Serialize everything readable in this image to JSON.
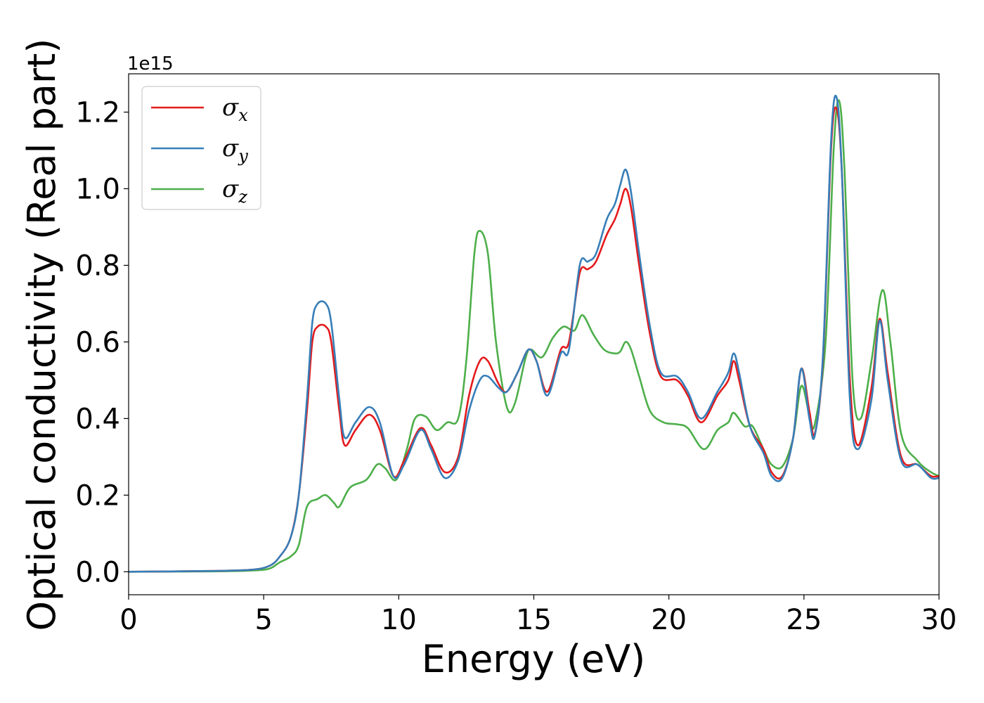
{
  "chart_data": {
    "type": "line",
    "title": "",
    "xlabel": "Energy (eV)",
    "ylabel": "Optical conductivity (Real part)",
    "y_offset_label": "1e15",
    "xlim": [
      0,
      30
    ],
    "ylim": [
      -0.06,
      1.3
    ],
    "x_ticks": [
      0,
      5,
      10,
      15,
      20,
      25,
      30
    ],
    "x_tick_labels": [
      "0",
      "5",
      "10",
      "15",
      "20",
      "25",
      "30"
    ],
    "y_ticks": [
      0.0,
      0.2,
      0.4,
      0.6,
      0.8,
      1.0,
      1.2
    ],
    "y_tick_labels": [
      "0.0",
      "0.2",
      "0.4",
      "0.6",
      "0.8",
      "1.0",
      "1.2"
    ],
    "grid": false,
    "legend_position": "top-left",
    "series": [
      {
        "name": "σx",
        "symbol": "σ",
        "subscript": "x",
        "color": "#e41a1c",
        "points": [
          [
            0,
            0
          ],
          [
            3,
            0.002
          ],
          [
            4.5,
            0.005
          ],
          [
            5.2,
            0.015
          ],
          [
            5.6,
            0.04
          ],
          [
            6.0,
            0.09
          ],
          [
            6.3,
            0.2
          ],
          [
            6.6,
            0.42
          ],
          [
            6.8,
            0.6
          ],
          [
            7.0,
            0.64
          ],
          [
            7.3,
            0.64
          ],
          [
            7.5,
            0.6
          ],
          [
            7.8,
            0.42
          ],
          [
            8.0,
            0.33
          ],
          [
            8.4,
            0.37
          ],
          [
            8.9,
            0.41
          ],
          [
            9.3,
            0.37
          ],
          [
            9.8,
            0.25
          ],
          [
            10.2,
            0.29
          ],
          [
            10.8,
            0.375
          ],
          [
            11.2,
            0.33
          ],
          [
            11.7,
            0.26
          ],
          [
            12.2,
            0.3
          ],
          [
            12.6,
            0.46
          ],
          [
            13.0,
            0.55
          ],
          [
            13.3,
            0.55
          ],
          [
            13.7,
            0.49
          ],
          [
            14.0,
            0.47
          ],
          [
            14.4,
            0.52
          ],
          [
            14.8,
            0.58
          ],
          [
            15.1,
            0.55
          ],
          [
            15.5,
            0.47
          ],
          [
            16.0,
            0.58
          ],
          [
            16.3,
            0.6
          ],
          [
            16.7,
            0.78
          ],
          [
            17.0,
            0.79
          ],
          [
            17.3,
            0.81
          ],
          [
            17.7,
            0.88
          ],
          [
            18.0,
            0.92
          ],
          [
            18.2,
            0.96
          ],
          [
            18.4,
            1.0
          ],
          [
            18.6,
            0.95
          ],
          [
            18.9,
            0.8
          ],
          [
            19.3,
            0.62
          ],
          [
            19.7,
            0.51
          ],
          [
            20.3,
            0.5
          ],
          [
            20.7,
            0.46
          ],
          [
            21.2,
            0.39
          ],
          [
            21.8,
            0.46
          ],
          [
            22.2,
            0.5
          ],
          [
            22.4,
            0.55
          ],
          [
            22.6,
            0.5
          ],
          [
            23.0,
            0.38
          ],
          [
            23.5,
            0.32
          ],
          [
            23.8,
            0.26
          ],
          [
            24.2,
            0.25
          ],
          [
            24.6,
            0.35
          ],
          [
            24.9,
            0.53
          ],
          [
            25.2,
            0.42
          ],
          [
            25.4,
            0.36
          ],
          [
            25.7,
            0.55
          ],
          [
            26.0,
            1.1
          ],
          [
            26.2,
            1.21
          ],
          [
            26.4,
            1.05
          ],
          [
            26.7,
            0.5
          ],
          [
            27.0,
            0.33
          ],
          [
            27.5,
            0.48
          ],
          [
            27.8,
            0.66
          ],
          [
            28.1,
            0.52
          ],
          [
            28.6,
            0.3
          ],
          [
            29.2,
            0.28
          ],
          [
            29.7,
            0.25
          ],
          [
            30,
            0.25
          ]
        ]
      },
      {
        "name": "σy",
        "symbol": "σ",
        "subscript": "y",
        "color": "#377eb8",
        "points": [
          [
            0,
            0
          ],
          [
            3,
            0.002
          ],
          [
            4.5,
            0.005
          ],
          [
            5.2,
            0.015
          ],
          [
            5.6,
            0.04
          ],
          [
            6.0,
            0.09
          ],
          [
            6.3,
            0.2
          ],
          [
            6.6,
            0.45
          ],
          [
            6.8,
            0.65
          ],
          [
            7.0,
            0.7
          ],
          [
            7.3,
            0.7
          ],
          [
            7.5,
            0.65
          ],
          [
            7.8,
            0.45
          ],
          [
            8.0,
            0.35
          ],
          [
            8.4,
            0.39
          ],
          [
            8.9,
            0.43
          ],
          [
            9.3,
            0.39
          ],
          [
            9.8,
            0.25
          ],
          [
            10.2,
            0.28
          ],
          [
            10.8,
            0.37
          ],
          [
            11.2,
            0.32
          ],
          [
            11.7,
            0.245
          ],
          [
            12.2,
            0.29
          ],
          [
            12.6,
            0.42
          ],
          [
            13.0,
            0.5
          ],
          [
            13.3,
            0.51
          ],
          [
            13.7,
            0.48
          ],
          [
            14.0,
            0.47
          ],
          [
            14.4,
            0.52
          ],
          [
            14.8,
            0.58
          ],
          [
            15.1,
            0.55
          ],
          [
            15.5,
            0.46
          ],
          [
            16.0,
            0.57
          ],
          [
            16.3,
            0.58
          ],
          [
            16.7,
            0.8
          ],
          [
            17.0,
            0.81
          ],
          [
            17.3,
            0.83
          ],
          [
            17.7,
            0.92
          ],
          [
            18.0,
            0.96
          ],
          [
            18.2,
            1.01
          ],
          [
            18.4,
            1.05
          ],
          [
            18.6,
            0.99
          ],
          [
            18.9,
            0.83
          ],
          [
            19.3,
            0.64
          ],
          [
            19.7,
            0.52
          ],
          [
            20.3,
            0.51
          ],
          [
            20.7,
            0.47
          ],
          [
            21.2,
            0.4
          ],
          [
            21.8,
            0.47
          ],
          [
            22.2,
            0.52
          ],
          [
            22.4,
            0.57
          ],
          [
            22.6,
            0.52
          ],
          [
            23.0,
            0.38
          ],
          [
            23.5,
            0.31
          ],
          [
            23.8,
            0.25
          ],
          [
            24.2,
            0.245
          ],
          [
            24.6,
            0.35
          ],
          [
            24.9,
            0.53
          ],
          [
            25.2,
            0.4
          ],
          [
            25.4,
            0.355
          ],
          [
            25.7,
            0.56
          ],
          [
            26.0,
            1.12
          ],
          [
            26.2,
            1.24
          ],
          [
            26.4,
            1.05
          ],
          [
            26.7,
            0.45
          ],
          [
            27.0,
            0.32
          ],
          [
            27.5,
            0.45
          ],
          [
            27.8,
            0.655
          ],
          [
            28.1,
            0.5
          ],
          [
            28.6,
            0.29
          ],
          [
            29.2,
            0.28
          ],
          [
            29.7,
            0.245
          ],
          [
            30,
            0.245
          ]
        ]
      },
      {
        "name": "σz",
        "symbol": "σ",
        "subscript": "z",
        "color": "#4daf4a",
        "points": [
          [
            0,
            0
          ],
          [
            3,
            0.001
          ],
          [
            4.5,
            0.003
          ],
          [
            5.2,
            0.008
          ],
          [
            5.6,
            0.025
          ],
          [
            6.0,
            0.04
          ],
          [
            6.3,
            0.07
          ],
          [
            6.6,
            0.17
          ],
          [
            7.0,
            0.19
          ],
          [
            7.3,
            0.2
          ],
          [
            7.6,
            0.18
          ],
          [
            7.8,
            0.17
          ],
          [
            8.2,
            0.22
          ],
          [
            8.8,
            0.24
          ],
          [
            9.2,
            0.28
          ],
          [
            9.5,
            0.27
          ],
          [
            9.9,
            0.24
          ],
          [
            10.3,
            0.32
          ],
          [
            10.6,
            0.4
          ],
          [
            11.0,
            0.405
          ],
          [
            11.4,
            0.37
          ],
          [
            11.8,
            0.39
          ],
          [
            12.2,
            0.4
          ],
          [
            12.5,
            0.55
          ],
          [
            12.8,
            0.83
          ],
          [
            13.0,
            0.89
          ],
          [
            13.3,
            0.83
          ],
          [
            13.6,
            0.6
          ],
          [
            14.0,
            0.43
          ],
          [
            14.3,
            0.44
          ],
          [
            14.7,
            0.56
          ],
          [
            14.9,
            0.58
          ],
          [
            15.3,
            0.56
          ],
          [
            15.7,
            0.61
          ],
          [
            16.1,
            0.64
          ],
          [
            16.5,
            0.63
          ],
          [
            16.8,
            0.67
          ],
          [
            17.2,
            0.62
          ],
          [
            17.6,
            0.58
          ],
          [
            18.0,
            0.57
          ],
          [
            18.2,
            0.575
          ],
          [
            18.4,
            0.6
          ],
          [
            18.6,
            0.58
          ],
          [
            18.9,
            0.51
          ],
          [
            19.3,
            0.42
          ],
          [
            19.8,
            0.39
          ],
          [
            20.3,
            0.385
          ],
          [
            20.7,
            0.375
          ],
          [
            21.3,
            0.32
          ],
          [
            21.8,
            0.37
          ],
          [
            22.2,
            0.39
          ],
          [
            22.4,
            0.415
          ],
          [
            22.8,
            0.38
          ],
          [
            23.1,
            0.38
          ],
          [
            23.5,
            0.32
          ],
          [
            23.8,
            0.28
          ],
          [
            24.2,
            0.275
          ],
          [
            24.6,
            0.35
          ],
          [
            24.9,
            0.485
          ],
          [
            25.2,
            0.41
          ],
          [
            25.4,
            0.385
          ],
          [
            25.8,
            0.6
          ],
          [
            26.1,
            1.1
          ],
          [
            26.3,
            1.23
          ],
          [
            26.5,
            1.05
          ],
          [
            26.8,
            0.5
          ],
          [
            27.1,
            0.4
          ],
          [
            27.5,
            0.55
          ],
          [
            27.9,
            0.735
          ],
          [
            28.2,
            0.6
          ],
          [
            28.6,
            0.36
          ],
          [
            29.2,
            0.29
          ],
          [
            29.7,
            0.26
          ],
          [
            30,
            0.25
          ]
        ]
      }
    ]
  }
}
